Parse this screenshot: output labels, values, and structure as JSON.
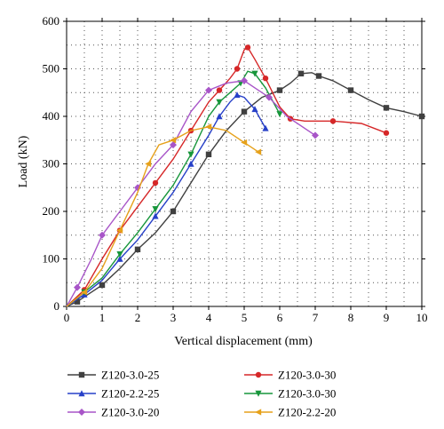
{
  "chart_data": {
    "type": "line",
    "title": "",
    "xlabel": "Vertical displacement (mm)",
    "ylabel": "Load (kN)",
    "xlim": [
      0,
      10
    ],
    "ylim": [
      0,
      600
    ],
    "x_ticks": [
      "0",
      "1",
      "2",
      "3",
      "4",
      "5",
      "6",
      "7",
      "8",
      "9",
      "10"
    ],
    "y_ticks": [
      "0",
      "100",
      "200",
      "300",
      "400",
      "500",
      "600"
    ],
    "grid": "dotted",
    "legend_position": "bottom",
    "series": [
      {
        "name": "Z120-3.0-25",
        "color": "#404040",
        "marker": "square",
        "points": [
          [
            0,
            0
          ],
          [
            0.3,
            10
          ],
          [
            0.6,
            25
          ],
          [
            1.0,
            45
          ],
          [
            1.5,
            80
          ],
          [
            2.0,
            120
          ],
          [
            2.5,
            155
          ],
          [
            3.0,
            200
          ],
          [
            3.5,
            260
          ],
          [
            4.0,
            320
          ],
          [
            4.5,
            370
          ],
          [
            5.0,
            410
          ],
          [
            5.5,
            440
          ],
          [
            6.0,
            455
          ],
          [
            6.3,
            470
          ],
          [
            6.6,
            490
          ],
          [
            6.9,
            492
          ],
          [
            7.1,
            485
          ],
          [
            7.5,
            475
          ],
          [
            8.0,
            455
          ],
          [
            8.5,
            435
          ],
          [
            9.0,
            418
          ],
          [
            9.5,
            410
          ],
          [
            10.0,
            400
          ]
        ]
      },
      {
        "name": "Z120-3.0-30",
        "color": "#d62728",
        "marker": "circle",
        "points": [
          [
            0,
            0
          ],
          [
            0.5,
            35
          ],
          [
            1.0,
            100
          ],
          [
            1.5,
            160
          ],
          [
            2.0,
            210
          ],
          [
            2.5,
            260
          ],
          [
            3.0,
            310
          ],
          [
            3.5,
            370
          ],
          [
            4.0,
            430
          ],
          [
            4.3,
            455
          ],
          [
            4.6,
            480
          ],
          [
            4.8,
            500
          ],
          [
            5.0,
            540
          ],
          [
            5.1,
            545
          ],
          [
            5.3,
            520
          ],
          [
            5.6,
            480
          ],
          [
            6.0,
            420
          ],
          [
            6.3,
            395
          ],
          [
            6.7,
            390
          ],
          [
            7.5,
            390
          ],
          [
            8.3,
            385
          ],
          [
            9.0,
            365
          ]
        ]
      },
      {
        "name": "Z120-2.2-25",
        "color": "#2740c8",
        "marker": "triangle",
        "points": [
          [
            0,
            0
          ],
          [
            0.5,
            25
          ],
          [
            1.0,
            55
          ],
          [
            1.5,
            100
          ],
          [
            2.0,
            140
          ],
          [
            2.5,
            190
          ],
          [
            3.0,
            240
          ],
          [
            3.5,
            300
          ],
          [
            4.0,
            360
          ],
          [
            4.3,
            400
          ],
          [
            4.6,
            430
          ],
          [
            4.8,
            445
          ],
          [
            5.0,
            440
          ],
          [
            5.3,
            415
          ],
          [
            5.6,
            375
          ]
        ]
      },
      {
        "name": "Z120-3.0-30",
        "color": "#17963b",
        "marker": "triangle-down",
        "points": [
          [
            0,
            0
          ],
          [
            0.5,
            30
          ],
          [
            1.0,
            60
          ],
          [
            1.5,
            110
          ],
          [
            2.0,
            155
          ],
          [
            2.5,
            205
          ],
          [
            3.0,
            255
          ],
          [
            3.5,
            320
          ],
          [
            4.0,
            400
          ],
          [
            4.3,
            430
          ],
          [
            4.6,
            450
          ],
          [
            4.9,
            470
          ],
          [
            5.1,
            495
          ],
          [
            5.3,
            490
          ],
          [
            5.6,
            460
          ],
          [
            6.0,
            405
          ]
        ]
      },
      {
        "name": "Z120-3.0-20",
        "color": "#a855c8",
        "marker": "diamond",
        "points": [
          [
            0,
            0
          ],
          [
            0.3,
            40
          ],
          [
            0.7,
            100
          ],
          [
            1.0,
            150
          ],
          [
            1.5,
            200
          ],
          [
            2.0,
            250
          ],
          [
            2.5,
            300
          ],
          [
            3.0,
            340
          ],
          [
            3.5,
            410
          ],
          [
            4.0,
            455
          ],
          [
            4.5,
            470
          ],
          [
            5.0,
            475
          ],
          [
            5.3,
            460
          ],
          [
            5.7,
            440
          ],
          [
            6.2,
            400
          ],
          [
            7.0,
            360
          ]
        ]
      },
      {
        "name": "Z120-2.2-20",
        "color": "#e6a11a",
        "marker": "left-triangle",
        "points": [
          [
            0,
            0
          ],
          [
            0.5,
            30
          ],
          [
            1.0,
            80
          ],
          [
            1.5,
            160
          ],
          [
            2.0,
            240
          ],
          [
            2.3,
            300
          ],
          [
            2.6,
            340
          ],
          [
            3.0,
            350
          ],
          [
            3.5,
            370
          ],
          [
            4.0,
            378
          ],
          [
            4.5,
            370
          ],
          [
            5.0,
            345
          ],
          [
            5.4,
            325
          ]
        ]
      }
    ]
  }
}
